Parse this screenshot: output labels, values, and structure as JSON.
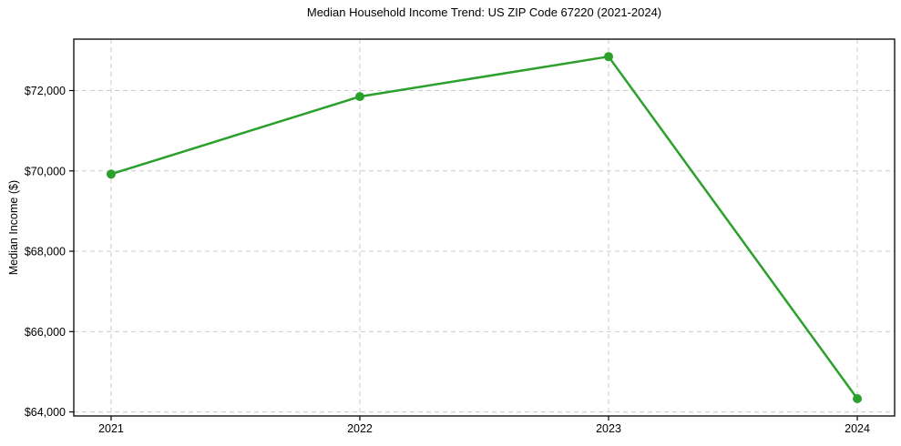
{
  "chart_data": {
    "type": "line",
    "title": "Median Household Income Trend: US ZIP Code 67220 (2021-2024)",
    "xlabel": "",
    "ylabel": "Median Income ($)",
    "series": [
      {
        "name": "Median Household Income",
        "x": [
          2021,
          2022,
          2023,
          2024
        ],
        "values": [
          69920,
          71850,
          72845,
          64330
        ]
      }
    ],
    "xticks": [
      2021,
      2022,
      2023,
      2024
    ],
    "xtick_labels": [
      "2021",
      "2022",
      "2023",
      "2024"
    ],
    "yticks": [
      64000,
      66000,
      68000,
      70000,
      72000
    ],
    "ytick_labels": [
      "$64,000",
      "$66,000",
      "$68,000",
      "$70,000",
      "$72,000"
    ],
    "xlim": [
      2020.85,
      2024.15
    ],
    "ylim": [
      63900,
      73280
    ],
    "grid": true,
    "grid_style": "dashed",
    "legend": "none",
    "colors": {
      "line": "#2ca02c",
      "marker": "#2ca02c",
      "grid": "#cccccc",
      "spine": "#000000",
      "text": "#000000",
      "background": "#ffffff"
    }
  }
}
